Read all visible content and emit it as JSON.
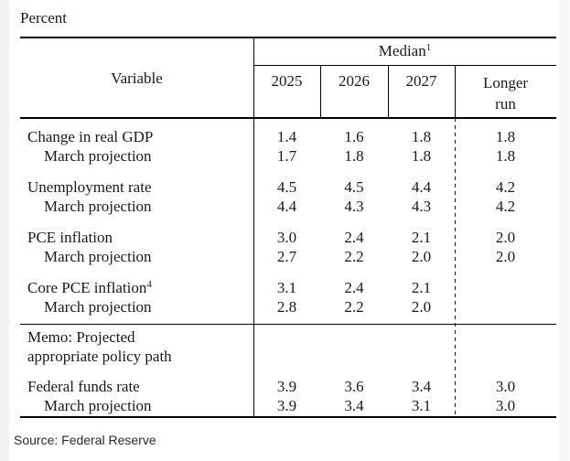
{
  "page": {
    "unit_label": "Percent",
    "source": "Source: Federal Reserve"
  },
  "table": {
    "header": {
      "variable": "Variable",
      "median": "Median",
      "median_sup": "1",
      "years": [
        "2025",
        "2026",
        "2027"
      ],
      "longer_run_line1": "Longer",
      "longer_run_line2": "run"
    },
    "memo": {
      "line1": "Memo: Projected",
      "line2": "appropriate policy path"
    },
    "rows": [
      {
        "label": "Change in real GDP",
        "indent": false,
        "values": [
          "1.4",
          "1.6",
          "1.8"
        ],
        "longer_run": "1.8"
      },
      {
        "label": "March projection",
        "indent": true,
        "values": [
          "1.7",
          "1.8",
          "1.8"
        ],
        "longer_run": "1.8"
      },
      {
        "label": "Unemployment rate",
        "indent": false,
        "values": [
          "4.5",
          "4.5",
          "4.4"
        ],
        "longer_run": "4.2"
      },
      {
        "label": "March projection",
        "indent": true,
        "values": [
          "4.4",
          "4.3",
          "4.3"
        ],
        "longer_run": "4.2"
      },
      {
        "label": "PCE inflation",
        "indent": false,
        "values": [
          "3.0",
          "2.4",
          "2.1"
        ],
        "longer_run": "2.0"
      },
      {
        "label": "March projection",
        "indent": true,
        "values": [
          "2.7",
          "2.2",
          "2.0"
        ],
        "longer_run": "2.0"
      },
      {
        "label": "Core PCE inflation",
        "sup": "4",
        "indent": false,
        "values": [
          "3.1",
          "2.4",
          "2.1"
        ],
        "longer_run": ""
      },
      {
        "label": "March projection",
        "indent": true,
        "values": [
          "2.8",
          "2.2",
          "2.0"
        ],
        "longer_run": ""
      },
      {
        "label": "Federal funds rate",
        "indent": false,
        "values": [
          "3.9",
          "3.6",
          "3.4"
        ],
        "longer_run": "3.0"
      },
      {
        "label": "March projection",
        "indent": true,
        "values": [
          "3.9",
          "3.4",
          "3.1"
        ],
        "longer_run": "3.0"
      }
    ]
  }
}
